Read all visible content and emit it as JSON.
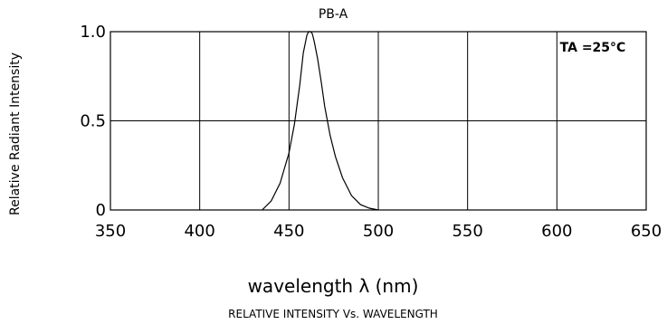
{
  "chart_data": {
    "type": "line",
    "title": "PB-A",
    "xlabel": "wavelength  λ (nm)",
    "ylabel": "Relative Radiant Intensity",
    "caption": "RELATIVE  INTENSITY  Vs.  WAVELENGTH",
    "annotation": "TA =25°C",
    "xlim": [
      350,
      650
    ],
    "ylim": [
      0,
      1.0
    ],
    "x_ticks": [
      "350",
      "400",
      "450",
      "500",
      "550",
      "600",
      "650"
    ],
    "y_ticks": [
      "0",
      "0.5",
      "1.0"
    ],
    "grid": true,
    "series": [
      {
        "x": [
          435,
          440,
          445,
          450,
          453,
          456,
          458,
          460,
          461,
          462,
          463,
          464,
          466,
          468,
          470,
          473,
          476,
          480,
          485,
          490,
          495,
          500
        ],
        "y": [
          0.0,
          0.05,
          0.15,
          0.32,
          0.48,
          0.7,
          0.88,
          0.98,
          1.0,
          1.0,
          0.99,
          0.95,
          0.85,
          0.72,
          0.58,
          0.42,
          0.3,
          0.18,
          0.08,
          0.03,
          0.01,
          0.0
        ]
      }
    ]
  }
}
